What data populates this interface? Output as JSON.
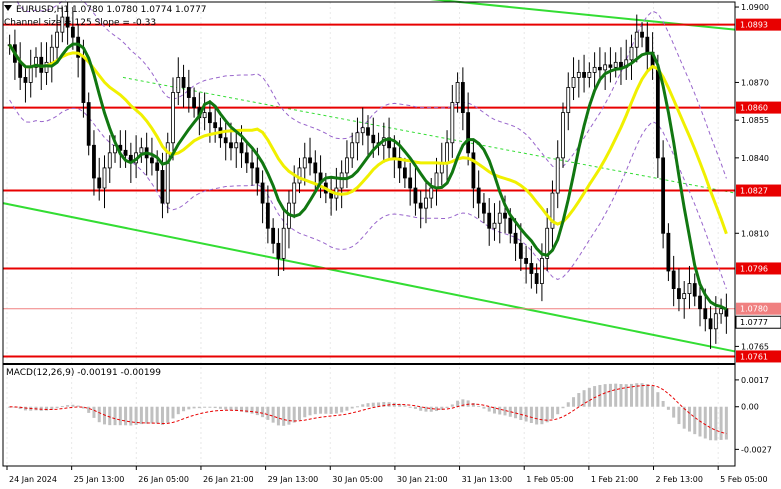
{
  "header": {
    "symbol_line": "EURUSD,H1  1.0780 1.0780 1.0774 1.0777",
    "channel_line": "Channel size = 125 Slope = -0.33",
    "arrow_icon": "down-triangle-icon"
  },
  "colors": {
    "level_red": "#e80000",
    "channel_green": "#33dd33",
    "ma_dark_green": "#117711",
    "ma_yellow": "#f0f000",
    "envelope_violet": "#9966cc",
    "candle": "#000000",
    "macd_hist": "#c0c0c0",
    "macd_signal": "#e80000"
  },
  "chart_data": {
    "type": "candlestick",
    "symbol": "EURUSD",
    "timeframe": "H1",
    "ohlc_last": {
      "open": 1.078,
      "high": 1.078,
      "low": 1.0774,
      "close": 1.0777
    },
    "ylim": [
      1.0758,
      1.0902
    ],
    "y_ticks": [
      "1.0900",
      "1.0870",
      "1.0855",
      "1.0840",
      "1.0810",
      "1.0765"
    ],
    "x_ticks": [
      "24 Jan 2024",
      "25 Jan 13:00",
      "26 Jan 05:00",
      "26 Jan 21:00",
      "29 Jan 13:00",
      "30 Jan 05:00",
      "30 Jan 21:00",
      "31 Jan 13:00",
      "1 Feb 05:00",
      "1 Feb 21:00",
      "2 Feb 13:00",
      "5 Feb 05:00"
    ],
    "levels": [
      {
        "value": 1.0893,
        "label": "1.0893"
      },
      {
        "value": 1.086,
        "label": "1.0860"
      },
      {
        "value": 1.0827,
        "label": "1.0827"
      },
      {
        "value": 1.0796,
        "label": "1.0796"
      },
      {
        "value": 1.0761,
        "label": "1.0761"
      }
    ],
    "price_tags": [
      {
        "value": 1.078,
        "label": "1.0780",
        "kind": "bid"
      },
      {
        "value": 1.0777,
        "label": "1.0777",
        "kind": "current"
      }
    ],
    "channel": {
      "size": 125,
      "slope": -0.33,
      "upper": [
        [
          0,
          1.092
        ],
        [
          147,
          1.0891
        ]
      ],
      "lower": [
        [
          0,
          1.0822
        ],
        [
          147,
          1.0763
        ]
      ]
    },
    "closes": [
      1.0885,
      1.0878,
      1.0872,
      1.087,
      1.0876,
      1.088,
      1.0874,
      1.0878,
      1.0884,
      1.089,
      1.0896,
      1.0892,
      1.0888,
      1.088,
      1.0862,
      1.0845,
      1.0832,
      1.0828,
      1.0836,
      1.0842,
      1.0845,
      1.0843,
      1.0841,
      1.0838,
      1.0842,
      1.0844,
      1.084,
      1.0838,
      1.0835,
      1.0822,
      1.0846,
      1.0866,
      1.0872,
      1.0868,
      1.0864,
      1.086,
      1.0856,
      1.0858,
      1.0854,
      1.0852,
      1.0848,
      1.0846,
      1.0844,
      1.0846,
      1.0842,
      1.0838,
      1.0836,
      1.083,
      1.0822,
      1.0812,
      1.0806,
      1.08,
      1.0812,
      1.0822,
      1.083,
      1.0836,
      1.084,
      1.0838,
      1.0834,
      1.083,
      1.0826,
      1.0824,
      1.0828,
      1.0834,
      1.084,
      1.0846,
      1.085,
      1.0852,
      1.0849,
      1.0846,
      1.0845,
      1.0848,
      1.0844,
      1.084,
      1.0836,
      1.0832,
      1.0828,
      1.0822,
      1.082,
      1.0824,
      1.0828,
      1.0834,
      1.0838,
      1.0846,
      1.0862,
      1.087,
      1.0858,
      1.0842,
      1.0828,
      1.0822,
      1.0818,
      1.0812,
      1.0814,
      1.0818,
      1.0816,
      1.081,
      1.0806,
      1.08,
      1.0798,
      1.0794,
      1.079,
      1.08,
      1.0812,
      1.0826,
      1.084,
      1.0858,
      1.0868,
      1.0872,
      1.0874,
      1.0872,
      1.0874,
      1.0876,
      1.0875,
      1.0877,
      1.0876,
      1.0878,
      1.0876,
      1.0879,
      1.0884,
      1.089,
      1.0888,
      1.0882,
      1.0876,
      1.084,
      1.081,
      1.0795,
      1.0788,
      1.0784,
      1.0786,
      1.079,
      1.0785,
      1.078,
      1.0776,
      1.0772,
      1.0778,
      1.078,
      1.0777
    ],
    "macd": {
      "label": "MACD(12,26,9) -0.00191 -0.00199",
      "ylim": [
        -0.0035,
        0.0022
      ],
      "y_ticks": [
        "0.0017",
        "0.00",
        "-0.0027"
      ]
    }
  }
}
